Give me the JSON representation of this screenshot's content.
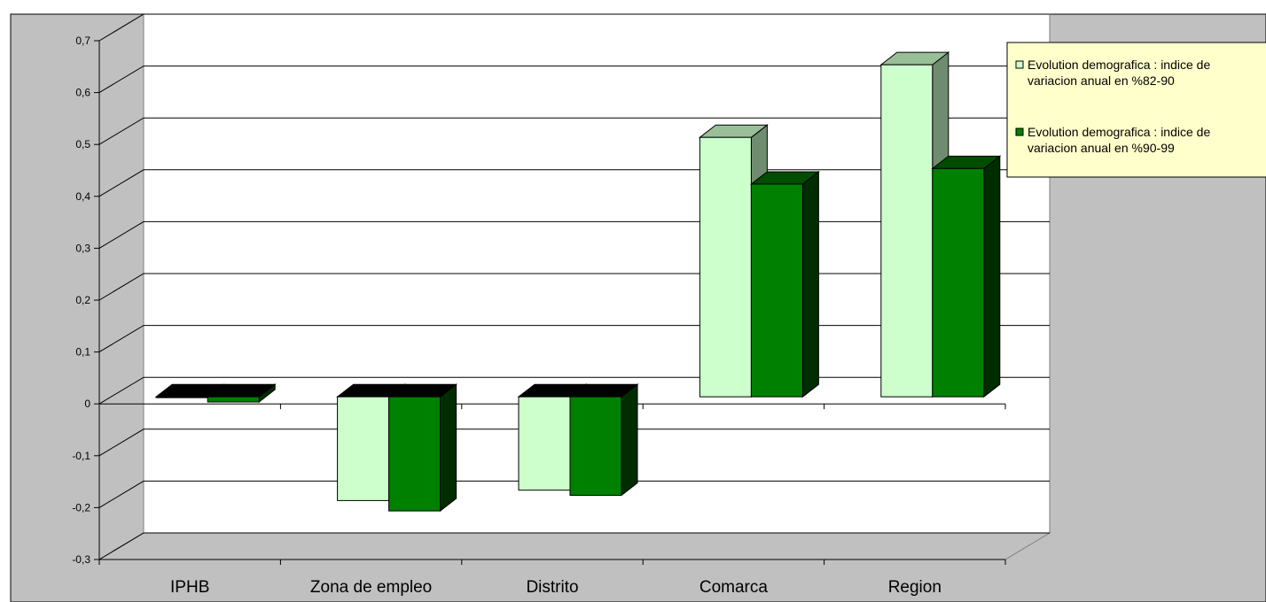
{
  "chart_data": {
    "type": "bar",
    "categories": [
      "IPHB",
      "Zona de empleo",
      "Distrito",
      "Comarca",
      "Region"
    ],
    "series": [
      {
        "name": "Evolution demografica : indice de variacion anual en %82-90",
        "values": [
          0.0,
          -0.2,
          -0.18,
          0.5,
          0.64
        ],
        "color": "#ccffcc"
      },
      {
        "name": "Evolution demografica : indice de variacion anual en %90-99",
        "values": [
          -0.01,
          -0.22,
          -0.19,
          0.41,
          0.44
        ],
        "color": "#008000"
      }
    ],
    "ylim": [
      -0.3,
      0.7
    ],
    "yticks": [
      "0,7",
      "0,6",
      "0,5",
      "0,4",
      "0,3",
      "0,2",
      "0,1",
      "0",
      "-0,1",
      "-0,2",
      "-0,3"
    ],
    "legend": {
      "position": "top-right",
      "items": [
        {
          "line1": "Evolution demografica : indice de",
          "line2": "variacion anual en %82-90"
        },
        {
          "line1": "Evolution demografica : indice de",
          "line2": "variacion anual en %90-99"
        }
      ]
    },
    "grid": true,
    "colors": {
      "background": "#c0c0c0",
      "plot_wall": "#ffffff",
      "legend_bg": "#ffffcc"
    }
  }
}
